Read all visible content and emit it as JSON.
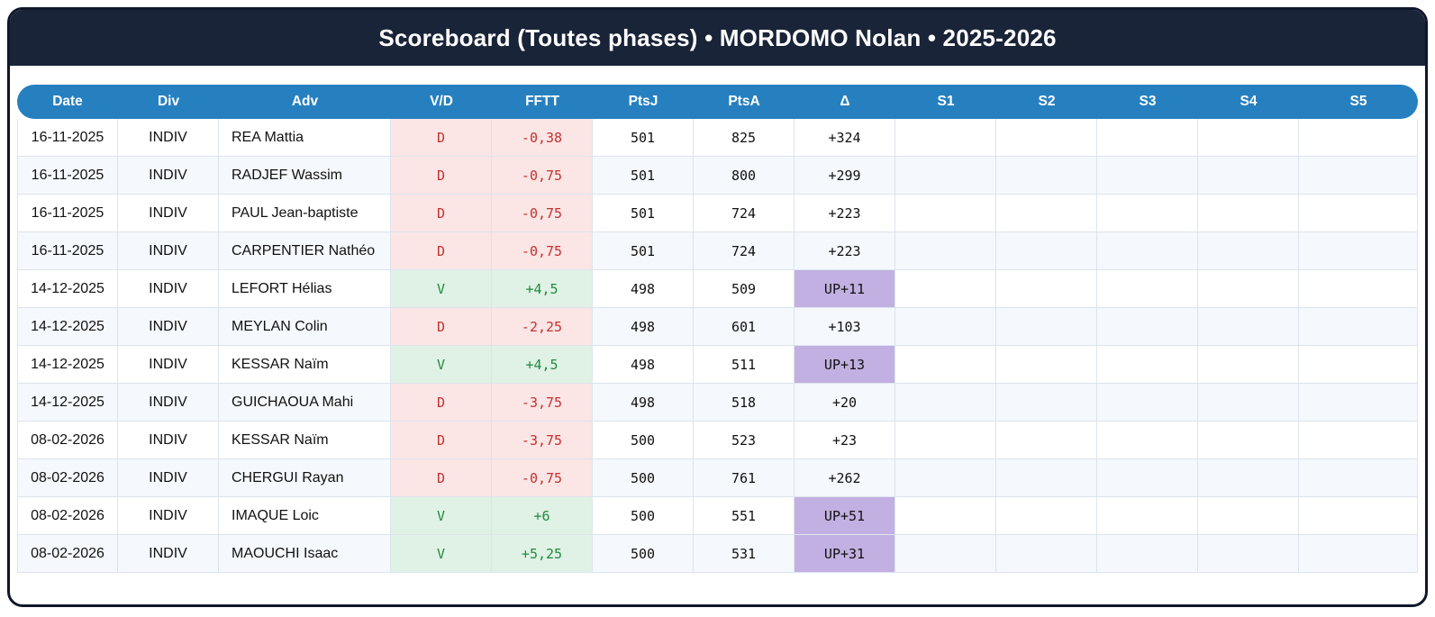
{
  "title": "Scoreboard (Toutes phases) • MORDOMO Nolan • 2025-2026",
  "table": {
    "columns": [
      {
        "key": "date",
        "label": "Date"
      },
      {
        "key": "div",
        "label": "Div"
      },
      {
        "key": "adv",
        "label": "Adv"
      },
      {
        "key": "vd",
        "label": "V/D"
      },
      {
        "key": "fftt",
        "label": "FFTT"
      },
      {
        "key": "ptsj",
        "label": "PtsJ"
      },
      {
        "key": "ptsa",
        "label": "PtsA"
      },
      {
        "key": "delta",
        "label": "Δ"
      },
      {
        "key": "s1",
        "label": "S1"
      },
      {
        "key": "s2",
        "label": "S2"
      },
      {
        "key": "s3",
        "label": "S3"
      },
      {
        "key": "s4",
        "label": "S4"
      },
      {
        "key": "s5",
        "label": "S5"
      }
    ],
    "rows": [
      {
        "date": "16-11-2025",
        "div": "INDIV",
        "adv": "REA Mattia",
        "vd": "D",
        "fftt": "-0,38",
        "ptsj": "501",
        "ptsa": "825",
        "delta": "+324",
        "promotion": false,
        "s1": "",
        "s2": "",
        "s3": "",
        "s4": "",
        "s5": ""
      },
      {
        "date": "16-11-2025",
        "div": "INDIV",
        "adv": "RADJEF Wassim",
        "vd": "D",
        "fftt": "-0,75",
        "ptsj": "501",
        "ptsa": "800",
        "delta": "+299",
        "promotion": false,
        "s1": "",
        "s2": "",
        "s3": "",
        "s4": "",
        "s5": ""
      },
      {
        "date": "16-11-2025",
        "div": "INDIV",
        "adv": "PAUL Jean-baptiste",
        "vd": "D",
        "fftt": "-0,75",
        "ptsj": "501",
        "ptsa": "724",
        "delta": "+223",
        "promotion": false,
        "s1": "",
        "s2": "",
        "s3": "",
        "s4": "",
        "s5": ""
      },
      {
        "date": "16-11-2025",
        "div": "INDIV",
        "adv": "CARPENTIER Nathéo",
        "vd": "D",
        "fftt": "-0,75",
        "ptsj": "501",
        "ptsa": "724",
        "delta": "+223",
        "promotion": false,
        "s1": "",
        "s2": "",
        "s3": "",
        "s4": "",
        "s5": ""
      },
      {
        "date": "14-12-2025",
        "div": "INDIV",
        "adv": "LEFORT Hélias",
        "vd": "V",
        "fftt": "+4,5",
        "ptsj": "498",
        "ptsa": "509",
        "delta": "UP+11",
        "promotion": true,
        "s1": "",
        "s2": "",
        "s3": "",
        "s4": "",
        "s5": ""
      },
      {
        "date": "14-12-2025",
        "div": "INDIV",
        "adv": "MEYLAN Colin",
        "vd": "D",
        "fftt": "-2,25",
        "ptsj": "498",
        "ptsa": "601",
        "delta": "+103",
        "promotion": false,
        "s1": "",
        "s2": "",
        "s3": "",
        "s4": "",
        "s5": ""
      },
      {
        "date": "14-12-2025",
        "div": "INDIV",
        "adv": "KESSAR Naïm",
        "vd": "V",
        "fftt": "+4,5",
        "ptsj": "498",
        "ptsa": "511",
        "delta": "UP+13",
        "promotion": true,
        "s1": "",
        "s2": "",
        "s3": "",
        "s4": "",
        "s5": ""
      },
      {
        "date": "14-12-2025",
        "div": "INDIV",
        "adv": "GUICHAOUA Mahi",
        "vd": "D",
        "fftt": "-3,75",
        "ptsj": "498",
        "ptsa": "518",
        "delta": "+20",
        "promotion": false,
        "s1": "",
        "s2": "",
        "s3": "",
        "s4": "",
        "s5": ""
      },
      {
        "date": "08-02-2026",
        "div": "INDIV",
        "adv": "KESSAR Naïm",
        "vd": "D",
        "fftt": "-3,75",
        "ptsj": "500",
        "ptsa": "523",
        "delta": "+23",
        "promotion": false,
        "s1": "",
        "s2": "",
        "s3": "",
        "s4": "",
        "s5": ""
      },
      {
        "date": "08-02-2026",
        "div": "INDIV",
        "adv": "CHERGUI Rayan",
        "vd": "D",
        "fftt": "-0,75",
        "ptsj": "500",
        "ptsa": "761",
        "delta": "+262",
        "promotion": false,
        "s1": "",
        "s2": "",
        "s3": "",
        "s4": "",
        "s5": ""
      },
      {
        "date": "08-02-2026",
        "div": "INDIV",
        "adv": "IMAQUE Loic",
        "vd": "V",
        "fftt": "+6",
        "ptsj": "500",
        "ptsa": "551",
        "delta": "UP+51",
        "promotion": true,
        "s1": "",
        "s2": "",
        "s3": "",
        "s4": "",
        "s5": ""
      },
      {
        "date": "08-02-2026",
        "div": "INDIV",
        "adv": "MAOUCHI Isaac",
        "vd": "V",
        "fftt": "+5,25",
        "ptsj": "500",
        "ptsa": "531",
        "delta": "UP+31",
        "promotion": true,
        "s1": "",
        "s2": "",
        "s3": "",
        "s4": "",
        "s5": ""
      }
    ]
  },
  "colors": {
    "navy_titlebar": "#1a2438",
    "card_border": "#0f172a",
    "header_blue": "#2680c0",
    "row_stripe": "#f5f8fc",
    "grid_line": "#dde4ee",
    "loss_bg": "#fbe5e5",
    "loss_text": "#c43131",
    "win_bg": "#e0f1e5",
    "win_text": "#1f8b3d",
    "promotion_bg": "#c2b0e2"
  }
}
